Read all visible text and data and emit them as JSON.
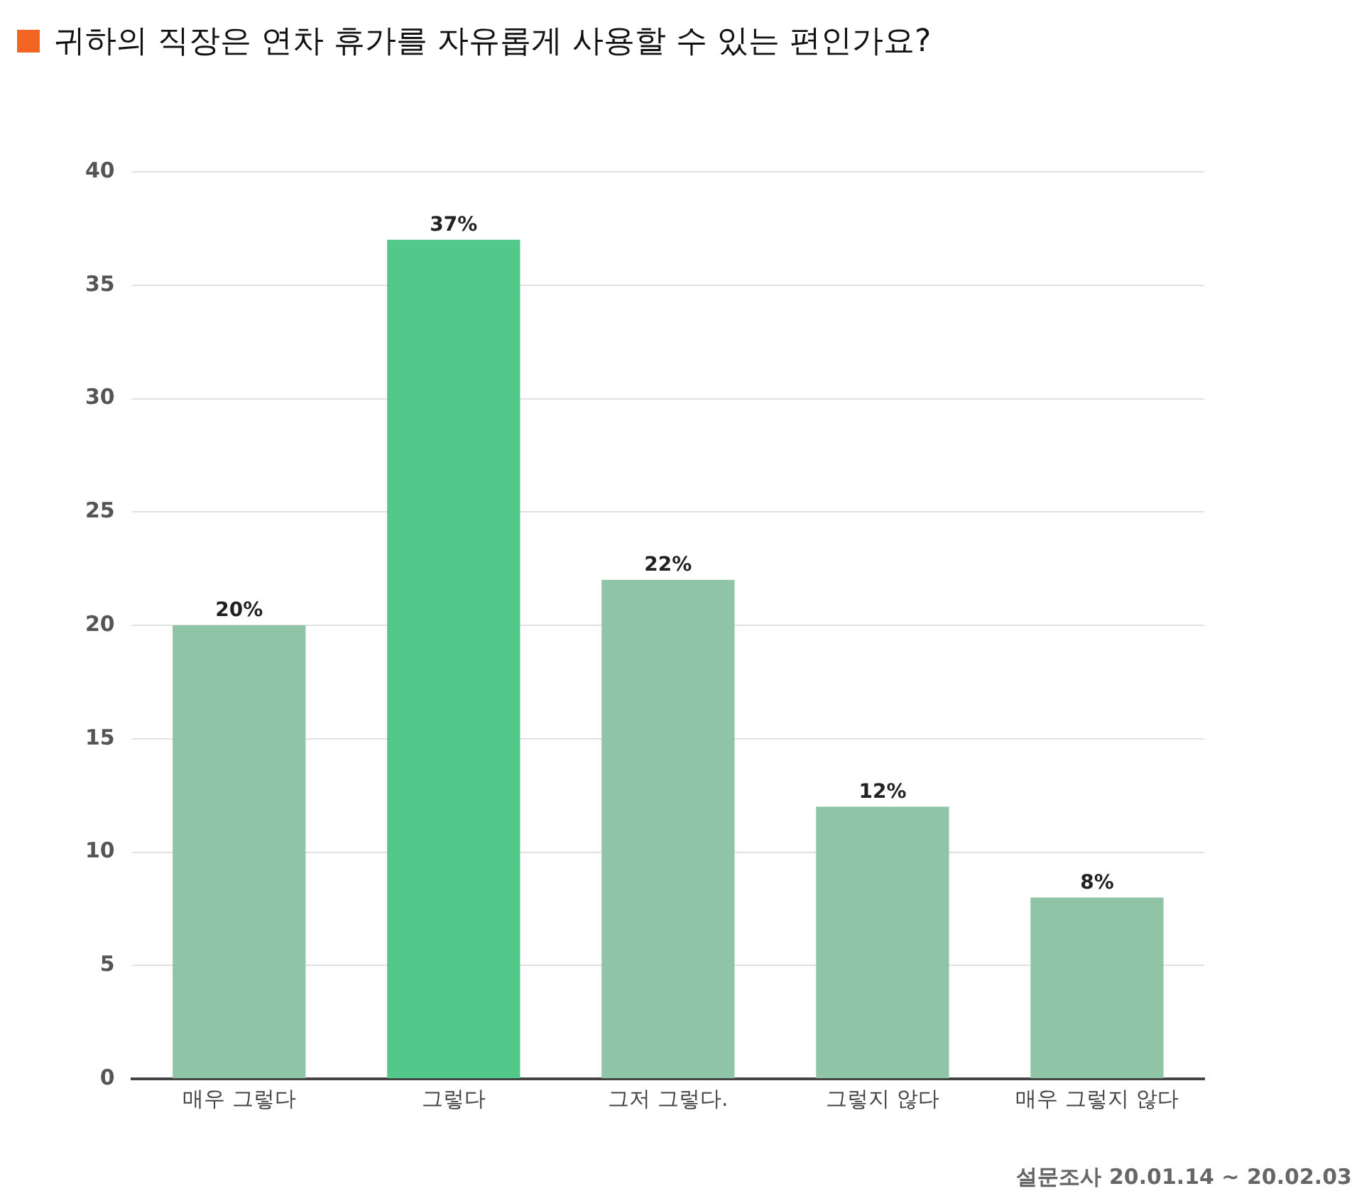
{
  "chart_data": {
    "type": "bar",
    "title": "귀하의 직장은 연차 휴가를 자유롭게 사용할 수 있는 편인가요?",
    "categories": [
      "매우 그렇다",
      "그렇다",
      "그저 그렇다.",
      "그렇지 않다",
      "매우 그렇지 않다"
    ],
    "values": [
      20,
      37,
      22,
      12,
      8
    ],
    "colors": [
      "#8fc4a7",
      "#52c98a",
      "#8fc4a7",
      "#8fc4a7",
      "#8fc4a7"
    ],
    "value_labels": [
      "20%",
      "37%",
      "22%",
      "12%",
      "8%"
    ],
    "ylim": [
      0,
      40
    ],
    "yticks": [
      0,
      5,
      10,
      15,
      20,
      25,
      30,
      35,
      40
    ],
    "grid": "y",
    "annotations": [
      "설문조사 20.01.14 ~ 20.02.03"
    ]
  }
}
